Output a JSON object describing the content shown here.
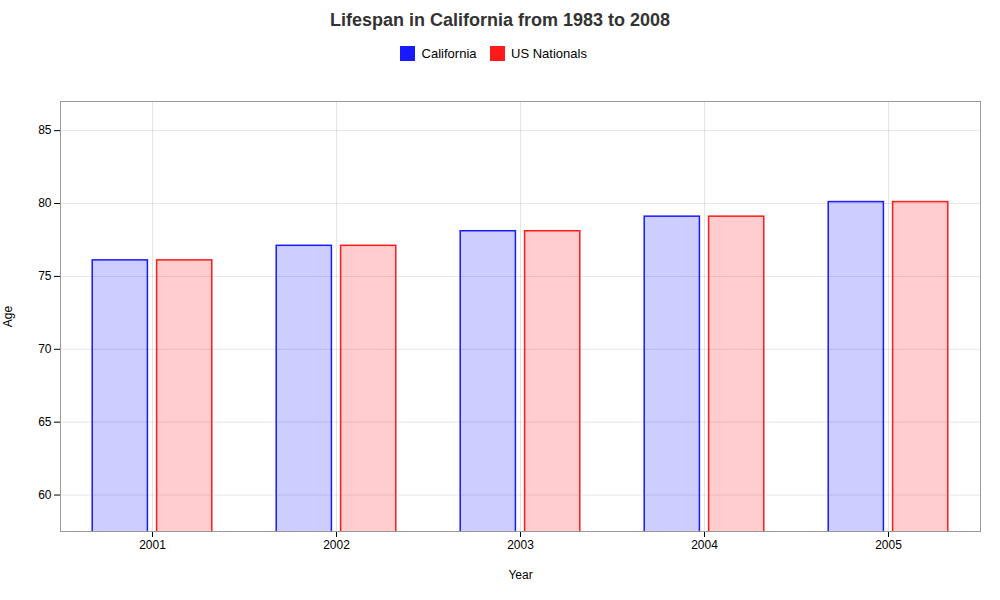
{
  "chart_data": {
    "type": "bar",
    "title": "Lifespan in California from 1983 to 2008",
    "xlabel": "Year",
    "ylabel": "Age",
    "categories": [
      "2001",
      "2002",
      "2003",
      "2004",
      "2005"
    ],
    "series": [
      {
        "name": "California",
        "color": "#1a1aff",
        "values": [
          76.1,
          77.1,
          78.1,
          79.1,
          80.1
        ]
      },
      {
        "name": "US Nationals",
        "color": "#ff1a1a",
        "values": [
          76.1,
          77.1,
          78.1,
          79.1,
          80.1
        ]
      }
    ],
    "ylim": [
      57.5,
      87
    ],
    "yticks": [
      60,
      65,
      70,
      75,
      80,
      85
    ],
    "grid": true,
    "legend": "top"
  }
}
